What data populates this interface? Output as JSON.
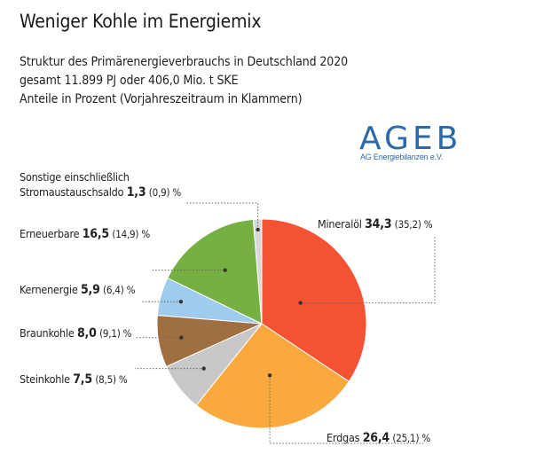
{
  "header": {
    "title": "Weniger Kohle im Energiemix",
    "subtitle_lines": [
      "Struktur des Primärenergieverbrauchs in Deutschland 2020",
      "gesamt 11.899 PJ oder 406,0 Mio. t SKE",
      "Anteile in Prozent (Vorjahreszeitraum in Klammern)"
    ]
  },
  "logo": {
    "main": "AGEB",
    "sub": "AG Energiebilanzen e.V."
  },
  "chart_data": {
    "type": "pie",
    "title": "Weniger Kohle im Energiemix",
    "slices": [
      {
        "name": "Mineralöl",
        "value": 34.3,
        "value_label": "34,3",
        "prev_label": "(35,2) %",
        "color": "#f55234"
      },
      {
        "name": "Erdgas",
        "value": 26.4,
        "value_label": "26,4",
        "prev_label": "(25,1) %",
        "color": "#faa93f"
      },
      {
        "name": "Steinkohle",
        "value": 7.5,
        "value_label": "7,5",
        "prev_label": "(8,5) %",
        "color": "#c8c8c8"
      },
      {
        "name": "Braunkohle",
        "value": 8.0,
        "value_label": "8,0",
        "prev_label": "(9,1) %",
        "color": "#9f6f41"
      },
      {
        "name": "Kernenergie",
        "value": 5.9,
        "value_label": "5,9",
        "prev_label": "(6,4) %",
        "color": "#9fcbed"
      },
      {
        "name": "Erneuerbare",
        "value": 16.5,
        "value_label": "16,5",
        "prev_label": "(14,9) %",
        "color": "#76b042"
      },
      {
        "name": "Sonstige einschließlich Stromaustauschsaldo",
        "name_line1": "Sonstige einschließlich",
        "name_line2": "Stromaustauschsaldo",
        "value": 1.3,
        "value_label": "1,3",
        "prev_label": "(0,9) %",
        "color": "#d8d8d8"
      }
    ]
  }
}
